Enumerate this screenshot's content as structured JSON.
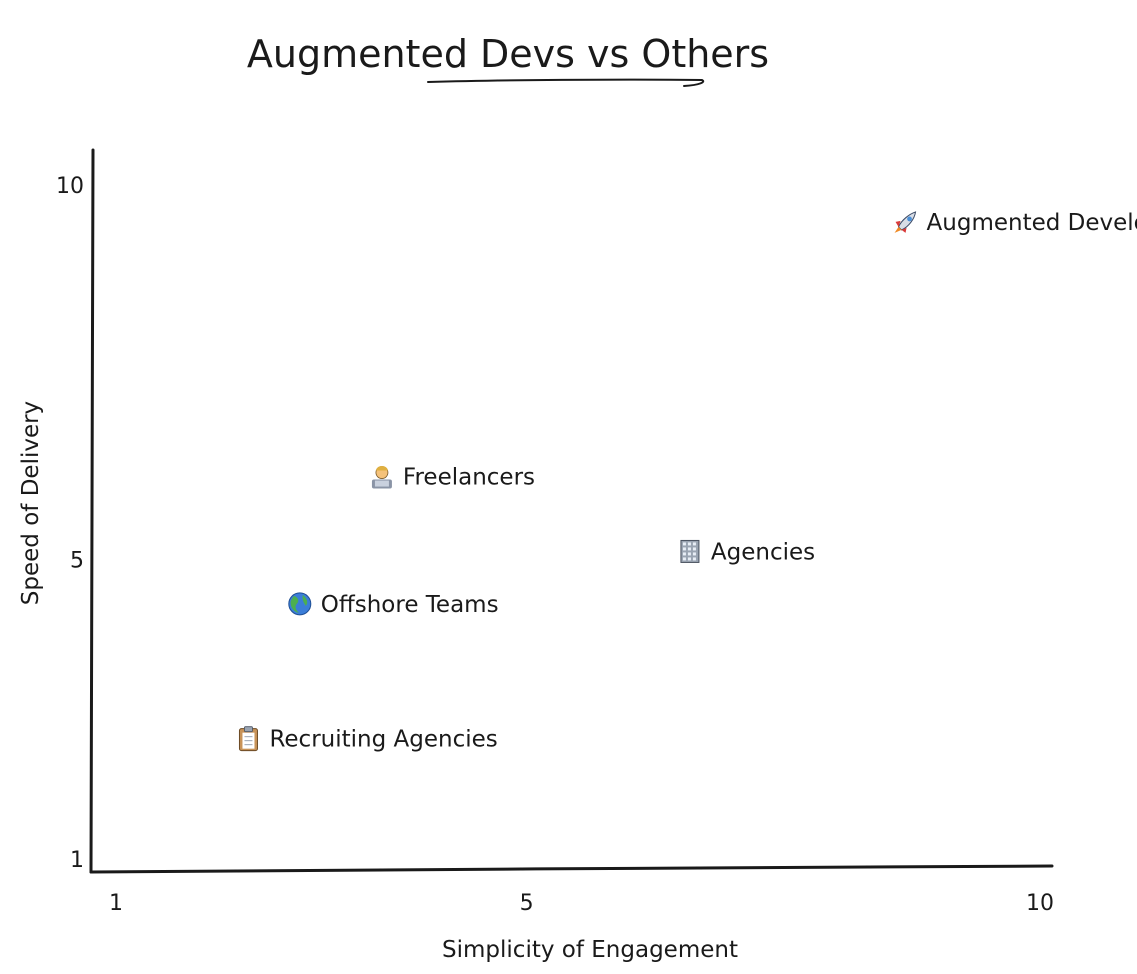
{
  "chart_data": {
    "type": "scatter",
    "title": "Augmented Devs vs Others",
    "xlabel": "Simplicity of Engagement",
    "ylabel": "Speed of Delivery",
    "xlim": [
      1,
      10
    ],
    "ylim": [
      1,
      10
    ],
    "x_ticks": [
      1,
      5,
      10
    ],
    "y_ticks": [
      1,
      5,
      10
    ],
    "grid": false,
    "points": [
      {
        "label": "Augmented Developers",
        "icon": "rocket-icon",
        "x": 8.7,
        "y": 9.4
      },
      {
        "label": "Freelancers",
        "icon": "technologist-icon",
        "x": 3.6,
        "y": 6.0
      },
      {
        "label": "Agencies",
        "icon": "office-building-icon",
        "x": 6.6,
        "y": 5.0
      },
      {
        "label": "Offshore Teams",
        "icon": "globe-icon",
        "x": 2.8,
        "y": 4.3
      },
      {
        "label": "Recruiting Agencies",
        "icon": "clipboard-icon",
        "x": 2.3,
        "y": 2.5
      }
    ]
  }
}
